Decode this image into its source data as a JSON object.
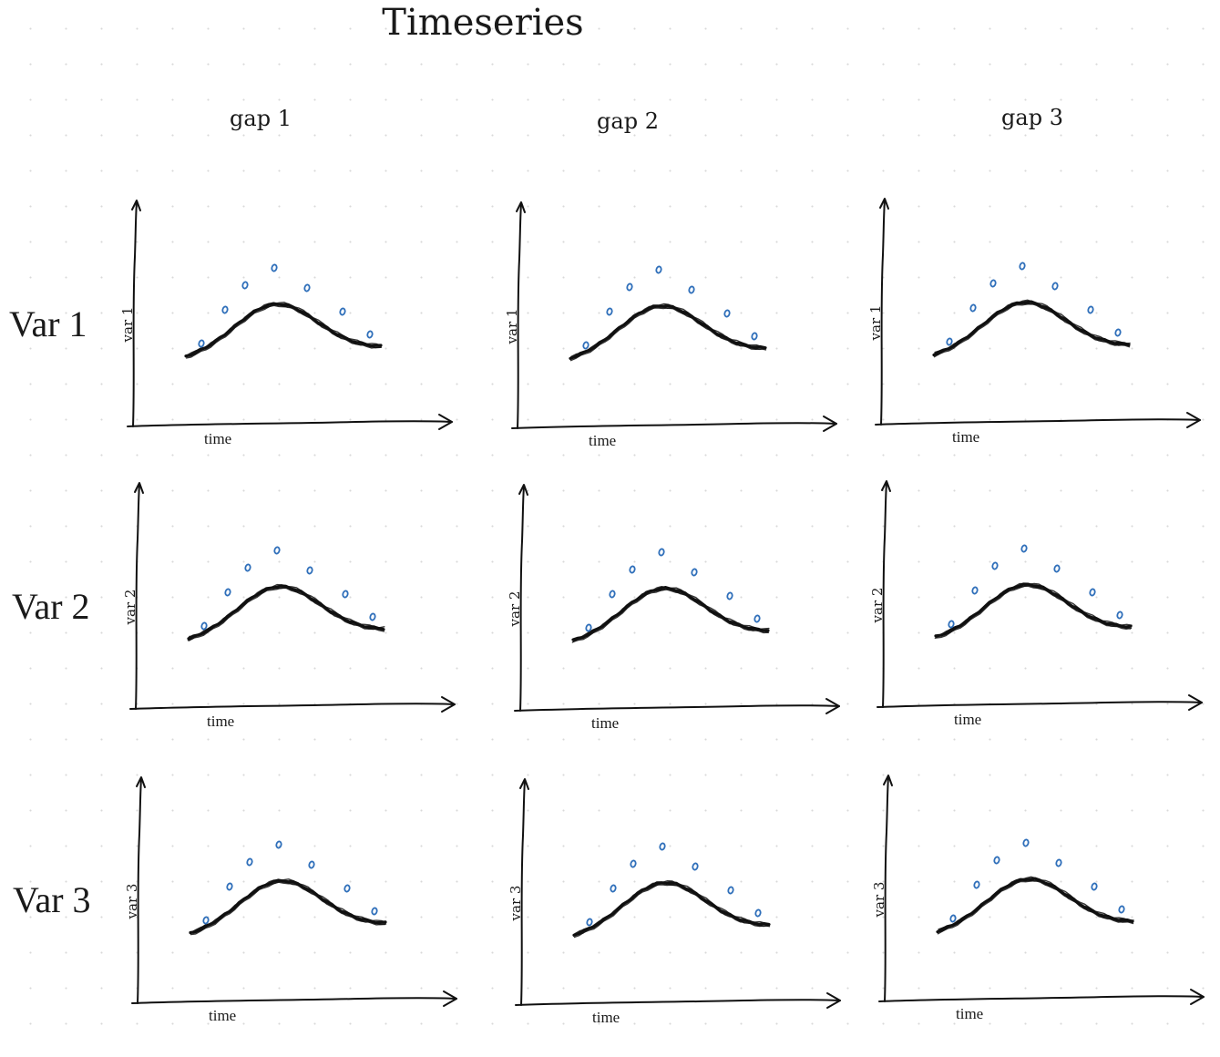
{
  "title": "Timeseries",
  "columns": [
    "gap 1",
    "gap 2",
    "gap 3"
  ],
  "rows": [
    "Var 1",
    "Var 2",
    "Var 3"
  ],
  "panels": [
    {
      "ylabel": "var 1",
      "xlabel": "time"
    },
    {
      "ylabel": "var 1",
      "xlabel": "time"
    },
    {
      "ylabel": "var 1",
      "xlabel": "time"
    },
    {
      "ylabel": "var 2",
      "xlabel": "time"
    },
    {
      "ylabel": "var 2",
      "xlabel": "time"
    },
    {
      "ylabel": "var 2",
      "xlabel": "time"
    },
    {
      "ylabel": "var 3",
      "xlabel": "time"
    },
    {
      "ylabel": "var 3",
      "xlabel": "time"
    },
    {
      "ylabel": "var 3",
      "xlabel": "time"
    }
  ],
  "colors": {
    "curve": "#111111",
    "axis": "#111111",
    "points": "#2f6fba"
  }
}
